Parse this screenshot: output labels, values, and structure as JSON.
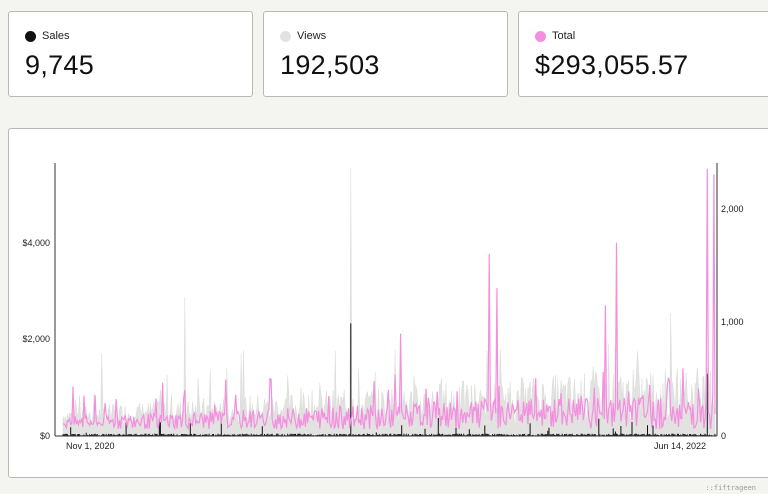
{
  "stats": [
    {
      "label": "Sales",
      "value": "9,745",
      "color": "#111111"
    },
    {
      "label": "Views",
      "value": "192,503",
      "color": "#e2e2e0"
    },
    {
      "label": "Total",
      "value": "$293,055.57",
      "color": "#f48fe0"
    }
  ],
  "chart_data": {
    "type": "area",
    "series": [
      {
        "name": "Sales",
        "axis": "left",
        "color": "#111111"
      },
      {
        "name": "Views",
        "axis": "left",
        "color": "#e2e2e0"
      },
      {
        "name": "Total",
        "axis": "right",
        "color": "#f48fe0"
      }
    ],
    "x_start_label": "Nov 1, 2020",
    "x_end_label": "Jun 14, 2022",
    "left_ticks": [
      "$0",
      "$2,000",
      "$4,000"
    ],
    "right_ticks": [
      "0",
      "1,000",
      "2,000"
    ],
    "left_ylim": [
      0,
      5700
    ],
    "right_ylim": [
      0,
      2400
    ],
    "grid": false
  },
  "watermark": "::fiftrageen"
}
